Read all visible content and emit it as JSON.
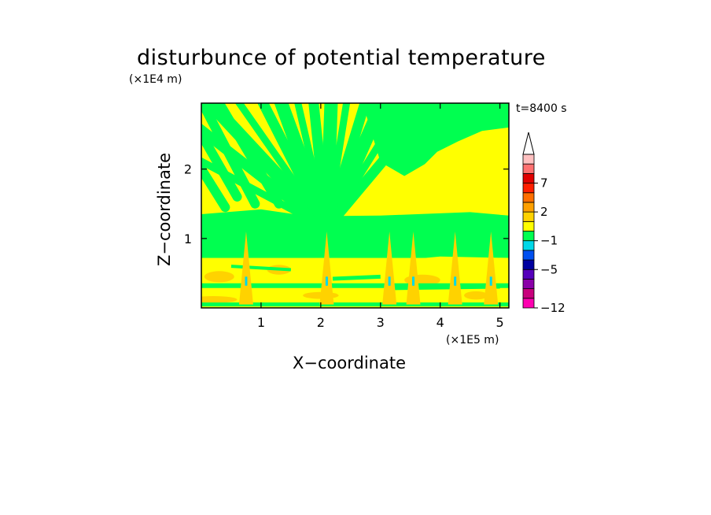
{
  "chart_data": {
    "type": "heatmap",
    "title": "disturbunce of potential temperature",
    "xlabel": "X−coordinate",
    "ylabel": "Z−coordinate",
    "x_multiplier": "(×1E5 m)",
    "y_multiplier": "(×1E4 m)",
    "time_label": "t=8400 s",
    "xlim": [
      0,
      5.15
    ],
    "ylim": [
      0,
      2.95
    ],
    "xticks": [
      1,
      2,
      3,
      4,
      5
    ],
    "yticks": [
      1,
      2
    ],
    "xtick_labels": [
      "1",
      "2",
      "3",
      "4",
      "5"
    ],
    "ytick_labels": [
      "1",
      "2"
    ],
    "colorbar": {
      "levels": [
        -12,
        -10,
        -8,
        -7,
        -5,
        -4,
        -3,
        -1,
        0,
        1,
        2,
        4,
        6,
        7,
        9,
        10
      ],
      "labels": [
        "−12",
        "−5",
        "−1",
        "2",
        "7"
      ],
      "label_levels": [
        -12,
        -5,
        -1,
        2,
        7
      ],
      "colors": [
        "#ff00b0",
        "#c8007c",
        "#8a00a8",
        "#5500bb",
        "#0000a0",
        "#0050f0",
        "#00d8e8",
        "#00ff50",
        "#ffff00",
        "#ffd200",
        "#ffa000",
        "#ff6e00",
        "#ff1e00",
        "#e00000",
        "#ff7070",
        "#ffc0c0"
      ],
      "extend": "max"
    },
    "regions": [
      {
        "name": "upper fan of alternating green and yellow wave bands",
        "z_range": [
          1.3,
          2.95
        ],
        "values": "-1 to 2"
      },
      {
        "name": "broad yellow region upper right",
        "x_range": [
          3.1,
          5.15
        ],
        "z_range": [
          1.3,
          2.4
        ],
        "value": "0 to 1"
      },
      {
        "name": "green band mid-level",
        "z_range": [
          0.7,
          1.35
        ],
        "value": "-1 to 0"
      },
      {
        "name": "lower yellow/orange layer with spikes",
        "z_range": [
          0,
          0.7
        ],
        "values": "-3 to 4"
      }
    ],
    "grid": false
  }
}
